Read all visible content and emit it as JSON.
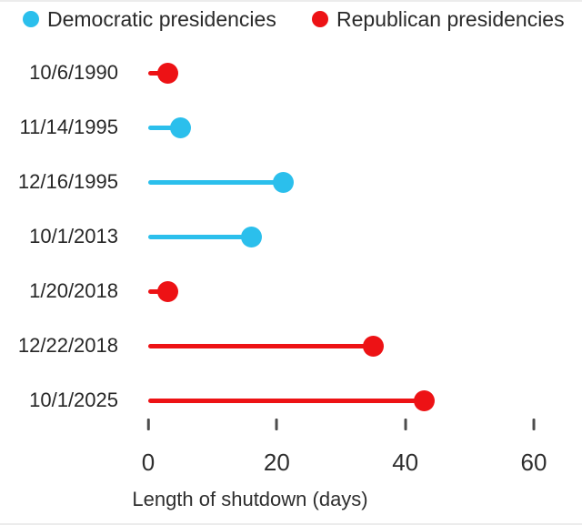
{
  "legend": {
    "items": [
      {
        "label": "Democratic presidencies",
        "color": "#2bbfec"
      },
      {
        "label": "Republican presidencies",
        "color": "#ed1215"
      }
    ]
  },
  "chart_data": {
    "type": "bar",
    "subtype": "lollipop",
    "orientation": "horizontal",
    "categories": [
      "10/6/1990",
      "11/14/1995",
      "12/16/1995",
      "10/1/2013",
      "1/20/2018",
      "12/22/2018",
      "10/1/2025"
    ],
    "values": [
      3,
      5,
      21,
      16,
      3,
      35,
      43
    ],
    "parties": [
      "republican",
      "democratic",
      "democratic",
      "democratic",
      "republican",
      "republican",
      "republican"
    ],
    "colors": {
      "democratic": "#2bbfec",
      "republican": "#ed1215"
    },
    "xlabel": "Length of shutdown (days)",
    "xlim": [
      0,
      60
    ],
    "xticks": [
      0,
      20,
      40,
      60
    ],
    "grid": false,
    "legend_position": "top"
  },
  "axis": {
    "tick_labels": [
      "0",
      "20",
      "40",
      "60"
    ],
    "title": "Length of shutdown (days)"
  }
}
